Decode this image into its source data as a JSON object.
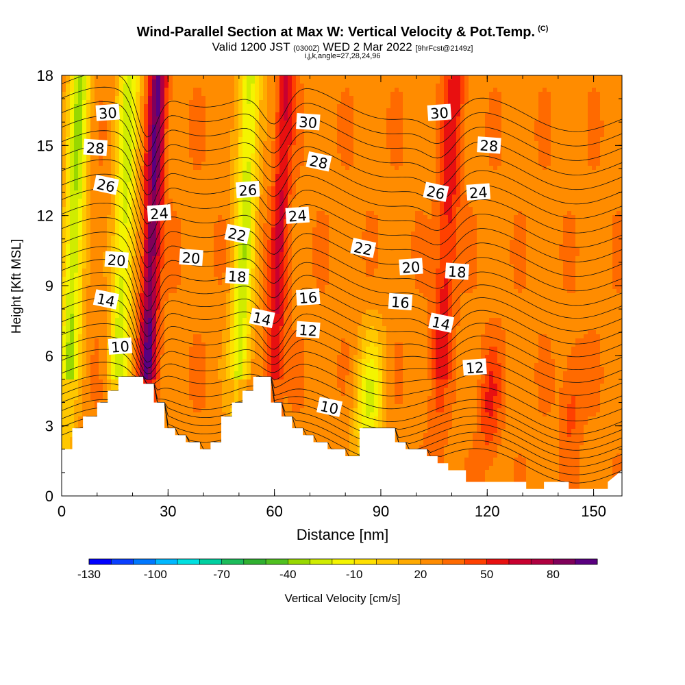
{
  "header": {
    "title": "Wind-Parallel Section at Max W: Vertical Velocity & Pot.Temp.",
    "title_mark": "(C)",
    "valid_prefix": "Valid 1200 JST",
    "valid_utc": "(0300Z)",
    "valid_date": "WED 2 Mar 2022",
    "forecast": "[9hrFcst@2149z]",
    "indices": "i,j,k,angle=27,28,24,96"
  },
  "chart_data": {
    "type": "heatmap",
    "title": "Wind-Parallel Section at Max W: Vertical Velocity & Pot.Temp.",
    "xlabel": "Distance [nm]",
    "ylabel": "Height [Kft MSL]",
    "xlim": [
      0,
      158
    ],
    "ylim": [
      0,
      18
    ],
    "x_ticks": [
      "0",
      "30",
      "60",
      "90",
      "120",
      "150"
    ],
    "y_ticks": [
      "0",
      "3",
      "6",
      "9",
      "12",
      "15",
      "18"
    ],
    "colorbar": {
      "label": "Vertical Velocity [cm/s]",
      "tick_labels": [
        "-130",
        "-100",
        "-70",
        "-40",
        "-10",
        "20",
        "50",
        "80"
      ],
      "colors": [
        "#0000ff",
        "#0a3fff",
        "#0078ff",
        "#00b8ff",
        "#00e0e0",
        "#00d0a0",
        "#1cbc5a",
        "#30b030",
        "#50c020",
        "#98d800",
        "#d0ec00",
        "#f4f400",
        "#ffe000",
        "#ffc800",
        "#ffaa00",
        "#ff8c00",
        "#ff6a00",
        "#ff4000",
        "#e81010",
        "#c80030",
        "#b00040",
        "#80005a",
        "#5a0080"
      ]
    },
    "vertical_velocity_features": [
      {
        "x": 3,
        "w": 3,
        "value": -45,
        "kind": "downdraft"
      },
      {
        "x": 17,
        "w": 3,
        "value": -40,
        "kind": "downdraft"
      },
      {
        "x": 25,
        "w": 2.5,
        "value": 75,
        "kind": "updraft"
      },
      {
        "x": 51,
        "w": 3,
        "value": -40,
        "kind": "downdraft"
      },
      {
        "x": 61,
        "w": 2.5,
        "value": 45,
        "kind": "updraft"
      },
      {
        "x": 108,
        "w": 3,
        "value": 40,
        "kind": "updraft"
      },
      {
        "x": 88,
        "w": 4,
        "value": -35,
        "kind": "downdraft"
      },
      {
        "x": 122,
        "w": 3,
        "value": 35,
        "kind": "updraft"
      },
      {
        "x": 145,
        "w": 3,
        "value": 30,
        "kind": "updraft"
      }
    ],
    "isentropes": {
      "variable": "Pot.Temp.",
      "levels": [
        4,
        5,
        6,
        7,
        8,
        9,
        10,
        11,
        12,
        13,
        14,
        15,
        16,
        17,
        18,
        19,
        20,
        21,
        22,
        23,
        24,
        25,
        26,
        27,
        28,
        29,
        30,
        31,
        32
      ],
      "labels": [
        {
          "text": "30",
          "x": 13,
          "y": 16.4
        },
        {
          "text": "28",
          "x": 9.5,
          "y": 14.9
        },
        {
          "text": "26",
          "x": 12.5,
          "y": 13.3
        },
        {
          "text": "24",
          "x": 27.5,
          "y": 12.1
        },
        {
          "text": "20",
          "x": 15.5,
          "y": 10.1
        },
        {
          "text": "14",
          "x": 12.5,
          "y": 8.4
        },
        {
          "text": "10",
          "x": 16.5,
          "y": 6.4
        },
        {
          "text": "20",
          "x": 36.5,
          "y": 10.2
        },
        {
          "text": "22",
          "x": 49.5,
          "y": 11.2
        },
        {
          "text": "26",
          "x": 52.5,
          "y": 13.1
        },
        {
          "text": "18",
          "x": 49.5,
          "y": 9.4
        },
        {
          "text": "14",
          "x": 56.5,
          "y": 7.6
        },
        {
          "text": "24",
          "x": 66.5,
          "y": 12.0
        },
        {
          "text": "30",
          "x": 69.5,
          "y": 16.0
        },
        {
          "text": "28",
          "x": 72.5,
          "y": 14.3
        },
        {
          "text": "16",
          "x": 69.5,
          "y": 8.5
        },
        {
          "text": "12",
          "x": 69.5,
          "y": 7.1
        },
        {
          "text": "22",
          "x": 85.0,
          "y": 10.6
        },
        {
          "text": "20",
          "x": 98.5,
          "y": 9.8
        },
        {
          "text": "16",
          "x": 95.5,
          "y": 8.3
        },
        {
          "text": "10",
          "x": 75.5,
          "y": 3.8
        },
        {
          "text": "30",
          "x": 106.5,
          "y": 16.4
        },
        {
          "text": "28",
          "x": 120.5,
          "y": 15.0
        },
        {
          "text": "26",
          "x": 105.5,
          "y": 13.0
        },
        {
          "text": "24",
          "x": 117.5,
          "y": 13.0
        },
        {
          "text": "18",
          "x": 111.5,
          "y": 9.6
        },
        {
          "text": "14",
          "x": 107.0,
          "y": 7.4
        },
        {
          "text": "12",
          "x": 116.5,
          "y": 5.5
        }
      ]
    },
    "terrain": [
      [
        0,
        2.0
      ],
      [
        3,
        2.0
      ],
      [
        3,
        2.9
      ],
      [
        6,
        2.9
      ],
      [
        6,
        3.4
      ],
      [
        10,
        3.4
      ],
      [
        10,
        4.0
      ],
      [
        13,
        4.0
      ],
      [
        13,
        4.5
      ],
      [
        16,
        4.5
      ],
      [
        16,
        5.1
      ],
      [
        23,
        5.1
      ],
      [
        23,
        4.8
      ],
      [
        26,
        4.8
      ],
      [
        26,
        4.0
      ],
      [
        29,
        4.0
      ],
      [
        29,
        2.9
      ],
      [
        32,
        2.9
      ],
      [
        32,
        2.6
      ],
      [
        35,
        2.6
      ],
      [
        35,
        2.3
      ],
      [
        39,
        2.3
      ],
      [
        39,
        2.0
      ],
      [
        42,
        2.0
      ],
      [
        42,
        2.3
      ],
      [
        45,
        2.3
      ],
      [
        45,
        3.4
      ],
      [
        48,
        3.4
      ],
      [
        48,
        4.0
      ],
      [
        51,
        4.0
      ],
      [
        51,
        4.5
      ],
      [
        54,
        4.5
      ],
      [
        54,
        5.1
      ],
      [
        59,
        5.1
      ],
      [
        59,
        4.0
      ],
      [
        62,
        4.0
      ],
      [
        62,
        3.4
      ],
      [
        65,
        3.4
      ],
      [
        65,
        2.9
      ],
      [
        68,
        2.9
      ],
      [
        68,
        2.6
      ],
      [
        71,
        2.6
      ],
      [
        71,
        2.3
      ],
      [
        75,
        2.3
      ],
      [
        75,
        2.0
      ],
      [
        80,
        2.0
      ],
      [
        80,
        1.7
      ],
      [
        84,
        1.7
      ],
      [
        84,
        2.9
      ],
      [
        94,
        2.9
      ],
      [
        94,
        2.3
      ],
      [
        97,
        2.3
      ],
      [
        97,
        2.0
      ],
      [
        103,
        2.0
      ],
      [
        103,
        1.7
      ],
      [
        106,
        1.7
      ],
      [
        106,
        1.4
      ],
      [
        109,
        1.4
      ],
      [
        109,
        1.1
      ],
      [
        114,
        1.1
      ],
      [
        114,
        0.6
      ],
      [
        131,
        0.6
      ],
      [
        131,
        0.3
      ],
      [
        136,
        0.3
      ],
      [
        136,
        0.6
      ],
      [
        143,
        0.6
      ],
      [
        143,
        0.3
      ],
      [
        154,
        0.3
      ],
      [
        154,
        0.6
      ],
      [
        158,
        1.1
      ]
    ]
  }
}
